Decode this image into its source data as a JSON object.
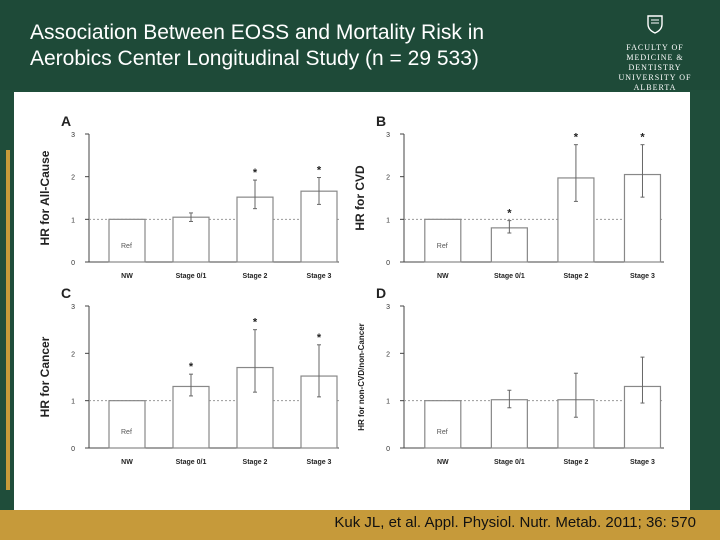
{
  "slide": {
    "title": "Association Between EOSS and Mortality Risk in\nAerobics Center Longitudinal Study (n = 29 533)",
    "citation": "Kuk JL, et al. Appl. Physiol. Nutr. Metab. 2011; 36: 570"
  },
  "logo": {
    "lines": [
      "FACULTY OF",
      "MEDICINE & DENTISTRY",
      "UNIVERSITY OF ALBERTA"
    ]
  },
  "colors": {
    "header": "#1e4a38",
    "accent": "#c69a3a",
    "bar_edge": "#888888"
  },
  "chart_data": [
    {
      "type": "bar",
      "panel": "A",
      "ylabel": "HR for All-Cause",
      "categories": [
        "NW",
        "Stage 0/1",
        "Stage 2",
        "Stage 3"
      ],
      "values": [
        1.0,
        1.05,
        1.52,
        1.66
      ],
      "err_low": [
        1.0,
        0.95,
        1.25,
        1.35
      ],
      "err_high": [
        1.0,
        1.15,
        1.92,
        1.98
      ],
      "significant": [
        false,
        false,
        true,
        true
      ],
      "ref_label": "Ref",
      "ylim": [
        0,
        3
      ],
      "ticks": [
        "0",
        "1",
        "2",
        "3"
      ],
      "reference_line": 1
    },
    {
      "type": "bar",
      "panel": "B",
      "ylabel": "HR for CVD",
      "categories": [
        "NW",
        "Stage 0/1",
        "Stage 2",
        "Stage 3"
      ],
      "values": [
        1.0,
        0.8,
        1.97,
        2.05
      ],
      "err_low": [
        1.0,
        0.68,
        1.42,
        1.52
      ],
      "err_high": [
        1.0,
        0.97,
        2.75,
        2.75
      ],
      "significant": [
        false,
        true,
        true,
        true
      ],
      "ref_label": "Ref",
      "ylim": [
        0,
        3
      ],
      "ticks": [
        "0",
        "1",
        "2",
        "3"
      ],
      "reference_line": 1
    },
    {
      "type": "bar",
      "panel": "C",
      "ylabel": "HR for Cancer",
      "categories": [
        "NW",
        "Stage 0/1",
        "Stage 2",
        "Stage 3"
      ],
      "values": [
        1.0,
        1.3,
        1.7,
        1.52
      ],
      "err_low": [
        1.0,
        1.1,
        1.18,
        1.08
      ],
      "err_high": [
        1.0,
        1.56,
        2.5,
        2.18
      ],
      "significant": [
        false,
        true,
        true,
        true
      ],
      "ref_label": "Ref",
      "ylim": [
        0,
        3
      ],
      "ticks": [
        "0",
        "1",
        "2",
        "3"
      ],
      "reference_line": 1
    },
    {
      "type": "bar",
      "panel": "D",
      "ylabel": "HR for non-CVD/non-Cancer",
      "categories": [
        "NW",
        "Stage 0/1",
        "Stage 2",
        "Stage 3"
      ],
      "values": [
        1.0,
        1.02,
        1.02,
        1.3
      ],
      "err_low": [
        1.0,
        0.85,
        0.65,
        0.95
      ],
      "err_high": [
        1.0,
        1.22,
        1.58,
        1.92
      ],
      "significant": [
        false,
        false,
        false,
        false
      ],
      "ref_label": "Ref",
      "ylim": [
        0,
        3
      ],
      "ticks": [
        "0",
        "1",
        "2",
        "3"
      ],
      "reference_line": 1
    }
  ]
}
